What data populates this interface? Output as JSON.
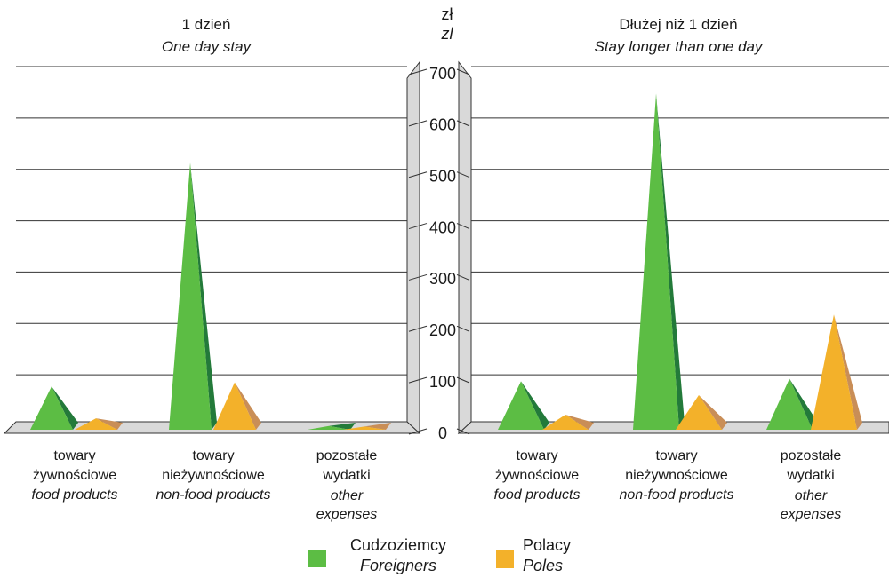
{
  "chart_data": {
    "type": "bar",
    "unit": {
      "pl": "zł",
      "en": "zl"
    },
    "y_ticks": [
      0,
      100,
      200,
      300,
      400,
      500,
      600,
      700
    ],
    "ylim": [
      0,
      700
    ],
    "grid": true,
    "legend_placement": "bottom-center",
    "series": [
      {
        "name_pl": "Cudzoziemcy",
        "name_en": "Foreigners",
        "color": "#5cbd44",
        "shade": "#237a3a"
      },
      {
        "name_pl": "Polacy",
        "name_en": "Poles",
        "color": "#f3b12a",
        "shade": "#c98e57"
      }
    ],
    "categories": [
      {
        "pl1": "towary",
        "pl2": "żywnościowe",
        "en1": "food products",
        "en2": ""
      },
      {
        "pl1": "towary",
        "pl2": "nieżywnościowe",
        "en1": "non-food products",
        "en2": ""
      },
      {
        "pl1": "pozostałe",
        "pl2": "wydatki",
        "en1": "other",
        "en2": "expenses"
      }
    ],
    "panels": [
      {
        "title_pl": "1 dzień",
        "title_en": "One day stay",
        "values": {
          "Foreigners": [
            80,
            515,
            3
          ],
          "Poles": [
            18,
            88,
            2
          ]
        }
      },
      {
        "title_pl": "Dłużej niż 1 dzień",
        "title_en": "Stay longer than one day",
        "values": {
          "Foreigners": [
            90,
            650,
            95
          ],
          "Poles": [
            25,
            63,
            220
          ]
        }
      }
    ]
  }
}
